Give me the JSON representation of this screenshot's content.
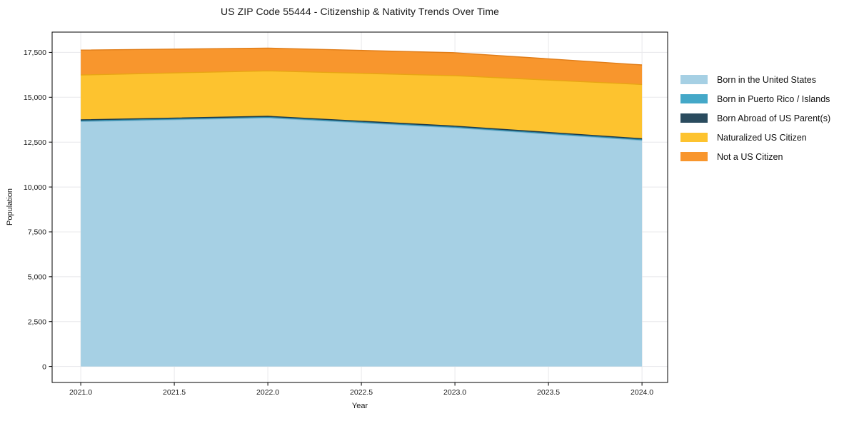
{
  "chart_data": {
    "type": "area",
    "stacked": true,
    "title": "US ZIP Code 55444 - Citizenship & Nativity Trends Over Time",
    "xlabel": "Year",
    "ylabel": "Population",
    "x": [
      2021,
      2022,
      2023,
      2024
    ],
    "series": [
      {
        "name": "Born in the United States",
        "color": "#a6d0e4",
        "edge_color": "#7cb6d2",
        "values": [
          13650,
          13850,
          13300,
          12600
        ]
      },
      {
        "name": "Born in Puerto Rico / Islands",
        "color": "#44a8c8",
        "edge_color": "#2e89a8",
        "values": [
          40,
          40,
          40,
          40
        ]
      },
      {
        "name": "Born Abroad of US Parent(s)",
        "color": "#2a4b5e",
        "edge_color": "#1d3a4a",
        "values": [
          50,
          50,
          50,
          50
        ]
      },
      {
        "name": "Naturalized US Citizen",
        "color": "#fdc32f",
        "edge_color": "#e8a513",
        "values": [
          2500,
          2530,
          2810,
          3020
        ]
      },
      {
        "name": "Not a US Citizen",
        "color": "#f8962d",
        "edge_color": "#e07c17",
        "values": [
          1390,
          1270,
          1280,
          1090
        ]
      }
    ],
    "totals": [
      17630,
      17740,
      17480,
      16800
    ],
    "x_tick_labels": [
      "2021.0",
      "2021.5",
      "2022.0",
      "2022.5",
      "2023.0",
      "2023.5",
      "2024.0"
    ],
    "x_tick_values": [
      2021,
      2021.5,
      2022,
      2022.5,
      2023,
      2023.5,
      2024
    ],
    "y_tick_labels": [
      "0",
      "2,500",
      "5,000",
      "7,500",
      "10,000",
      "12,500",
      "15,000",
      "17,500"
    ],
    "y_tick_values": [
      0,
      2500,
      5000,
      7500,
      10000,
      12500,
      15000,
      17500
    ],
    "xlim": [
      2020.847,
      2024.137
    ],
    "ylim": [
      -890,
      18630
    ],
    "grid": true,
    "grid_color": "#e8e8eb",
    "spine_color": "#000000",
    "plot_background": "#ffffff",
    "legend_position": "right"
  }
}
